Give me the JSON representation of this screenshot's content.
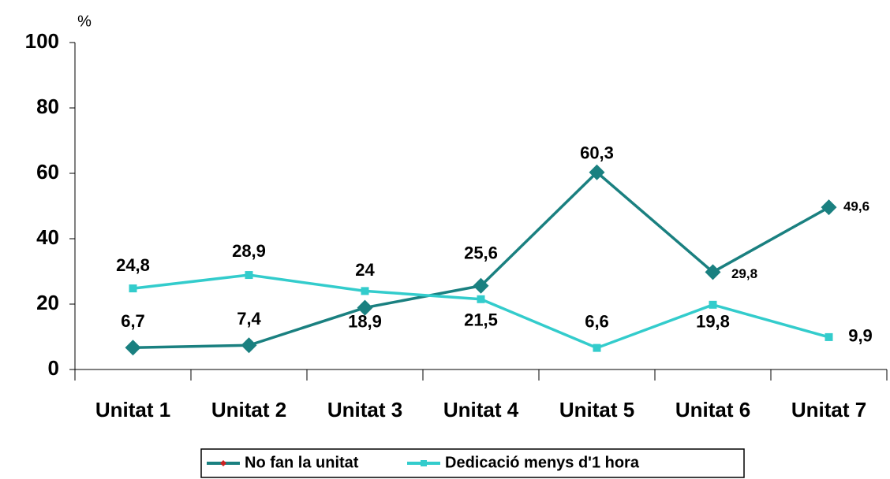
{
  "chart_data": {
    "type": "line",
    "y_label": "%",
    "categories": [
      "Unitat 1",
      "Unitat 2",
      "Unitat 3",
      "Unitat 4",
      "Unitat 5",
      "Unitat 6",
      "Unitat 7"
    ],
    "series": [
      {
        "name": "No fan la unitat",
        "color": "#1a8080",
        "values": [
          6.7,
          7.4,
          18.9,
          25.6,
          60.3,
          29.8,
          49.6
        ],
        "value_labels": [
          "6,7",
          "7,4",
          "18,9",
          "25,6",
          "60,3",
          "29,8",
          "49,6"
        ]
      },
      {
        "name": "Dedicació menys d'1 hora",
        "color": "#33cccc",
        "values": [
          24.8,
          28.9,
          24,
          21.5,
          6.6,
          19.8,
          9.9
        ],
        "value_labels": [
          "24,8",
          "28,9",
          "24",
          "21,5",
          "6,6",
          "19,8",
          "9,9"
        ]
      }
    ],
    "ylim": [
      0,
      100
    ],
    "yticks": [
      0,
      20,
      40,
      60,
      80,
      100
    ],
    "grid": false
  }
}
